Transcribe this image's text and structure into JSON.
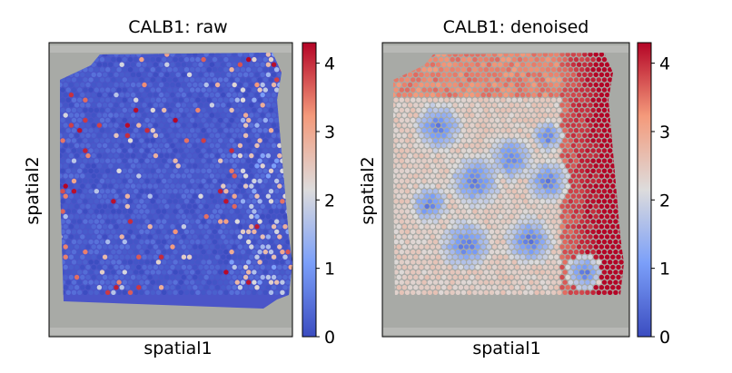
{
  "chart_data": [
    {
      "type": "heatmap",
      "title": "CALB1: raw",
      "xlabel": "spatial1",
      "ylabel": "spatial2",
      "colorbar": {
        "colormap": "coolwarm",
        "range": [
          0,
          4.3
        ],
        "ticks": [
          "0",
          "1",
          "2",
          "3",
          "4"
        ]
      },
      "grid": false,
      "description_of_values": "mostly ~0 expression (blue) with scattered high spots, denser on right edge"
    },
    {
      "type": "heatmap",
      "title": "CALB1: denoised",
      "xlabel": "spatial1",
      "ylabel": "spatial2",
      "colorbar": {
        "colormap": "coolwarm",
        "range": [
          0,
          4.3
        ],
        "ticks": [
          "0",
          "1",
          "2",
          "3",
          "4"
        ]
      },
      "grid": false,
      "description_of_values": "high expression ring along top and right edge, low-expression blue patches in center"
    }
  ],
  "colors": {
    "background_tissue": "#a8aaa6",
    "cmap_low": "#3b4cc0",
    "cmap_mid": "#dddcdc",
    "cmap_high": "#b40426"
  }
}
